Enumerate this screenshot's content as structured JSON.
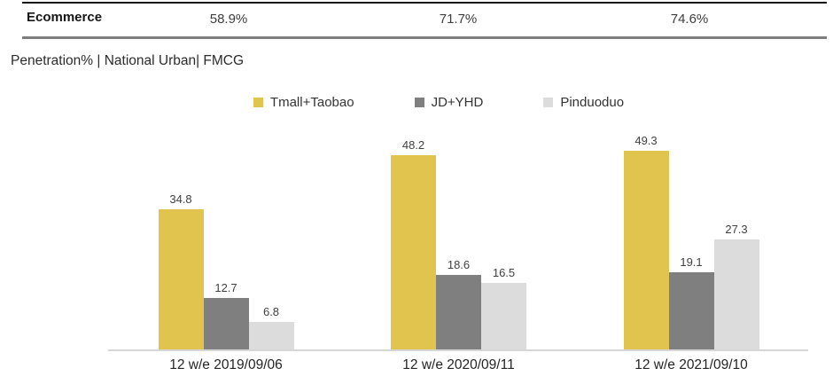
{
  "header": {
    "row_label": "Ecommerce",
    "values": [
      "58.9%",
      "71.7%",
      "74.6%"
    ]
  },
  "subtitle": "Penetration% | National Urban| FMCG",
  "chart_data": {
    "type": "bar",
    "title": "Penetration% | National Urban| FMCG",
    "categories": [
      "12 w/e 2019/09/06",
      "12 w/e 2020/09/11",
      "12 w/e 2021/09/10"
    ],
    "series": [
      {
        "name": "Tmall+Taobao",
        "color": "#e0c44e",
        "values": [
          34.8,
          48.2,
          49.3
        ]
      },
      {
        "name": "JD+YHD",
        "color": "#7f7f7f",
        "values": [
          12.7,
          18.6,
          19.1
        ]
      },
      {
        "name": "Pinduoduo",
        "color": "#dcdcdc",
        "values": [
          6.8,
          16.5,
          27.3
        ]
      }
    ],
    "summary_row": {
      "label": "Ecommerce",
      "values": [
        "58.9%",
        "71.7%",
        "74.6%"
      ]
    },
    "ylim": [
      0,
      55
    ],
    "grid": false,
    "legend_position": "top",
    "value_labels": true,
    "value_label_color": "#404040",
    "axis_line_color": "#d6d6d6"
  },
  "colors": {
    "header_top_border": "#161616",
    "header_bottom_border": "#7f7f7f",
    "text_primary": "#252525",
    "text_secondary": "#3d3d3d"
  }
}
